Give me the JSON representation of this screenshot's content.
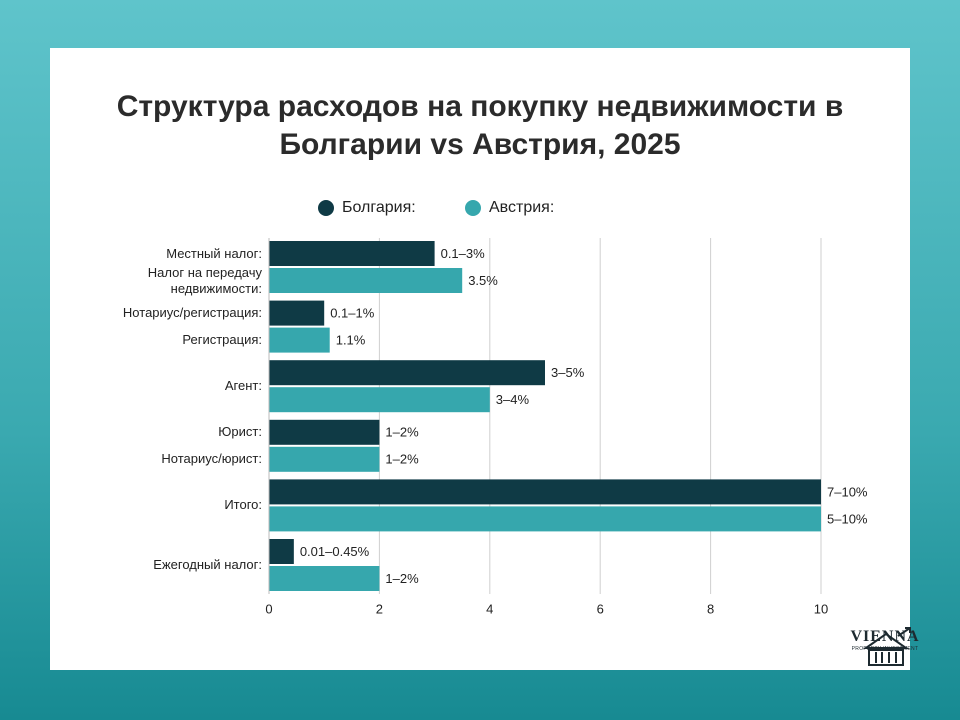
{
  "chart_data": {
    "type": "hbar",
    "title": "Структура расходов на покупку недвижимости в Болгарии vs Австрия, 2025",
    "categories": [
      "Местный налог:",
      "Нотариус/регистрация:",
      "Агент:",
      "Юрист:",
      "Итого:",
      "Ежегодный налог:"
    ],
    "series": [
      {
        "name": "Болгария:",
        "color": "#0f3a45",
        "values": [
          3,
          1,
          5,
          2,
          10,
          0.45
        ],
        "value_labels": [
          "0.1–3%",
          "0.1–1%",
          "3–5%",
          "1–2%",
          "7–10%",
          "0.01–0.45%"
        ]
      },
      {
        "name": "Австрия:",
        "color": "#36a7ad",
        "values": [
          3.5,
          1.1,
          4,
          2,
          10,
          2
        ],
        "value_labels": [
          "3.5%",
          "1.1%",
          "3–4%",
          "1–2%",
          "5–10%",
          "1–2%"
        ],
        "bar_labels": [
          "Налог на передачу недвижимости:",
          "Регистрация:",
          null,
          "Нотариус/юрист:",
          null,
          null
        ]
      }
    ],
    "xlim": [
      0,
      10
    ],
    "xticks": [
      0,
      2,
      4,
      6,
      8,
      10
    ],
    "grid": true
  },
  "logo": {
    "name": "VIENNA",
    "tagline": "PROPERTY INVESTMENT"
  }
}
